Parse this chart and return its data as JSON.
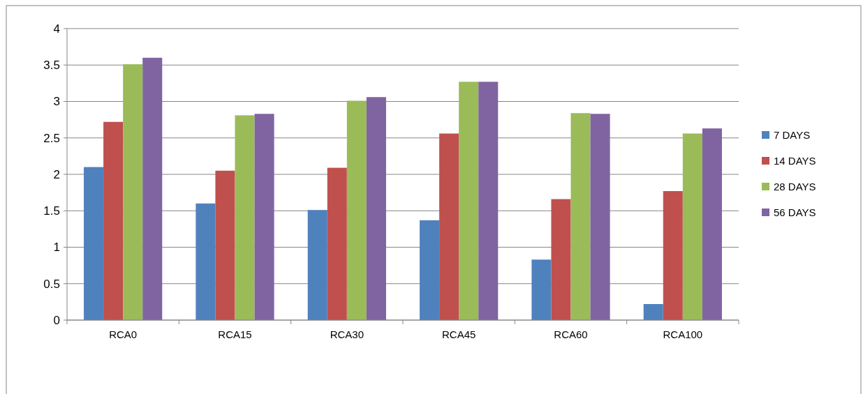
{
  "chart_data": {
    "type": "bar",
    "categories": [
      "RCA0",
      "RCA15",
      "RCA30",
      "RCA45",
      "RCA60",
      "RCA100"
    ],
    "series": [
      {
        "name": "7 DAYS",
        "color": "#4f81bd",
        "values": [
          2.1,
          1.6,
          1.51,
          1.37,
          0.83,
          0.22
        ]
      },
      {
        "name": "14 DAYS",
        "color": "#c0504d",
        "values": [
          2.72,
          2.05,
          2.09,
          2.56,
          1.66,
          1.77
        ]
      },
      {
        "name": "28 DAYS",
        "color": "#9bbb59",
        "values": [
          3.51,
          2.81,
          3.01,
          3.27,
          2.84,
          2.56
        ]
      },
      {
        "name": "56 DAYS",
        "color": "#8064a2",
        "values": [
          3.6,
          2.83,
          3.06,
          3.27,
          2.83,
          2.63
        ]
      }
    ],
    "ylim": [
      0,
      4
    ],
    "yticks": [
      0,
      0.5,
      1,
      1.5,
      2,
      2.5,
      3,
      3.5,
      4
    ],
    "grid": "y",
    "legend": "right"
  }
}
